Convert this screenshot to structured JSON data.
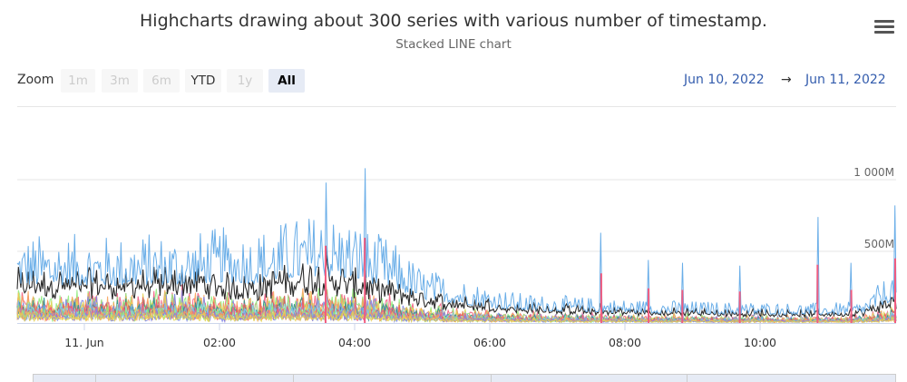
{
  "title": "Highcharts drawing about 300 series with various number of timestamp.",
  "subtitle": "Stacked LINE chart",
  "menu_icon": "hamburger-menu-icon",
  "zoom": {
    "label": "Zoom",
    "buttons": [
      {
        "label": "1m",
        "state": "disabled"
      },
      {
        "label": "3m",
        "state": "disabled"
      },
      {
        "label": "6m",
        "state": "disabled"
      },
      {
        "label": "YTD",
        "state": "enabled"
      },
      {
        "label": "1y",
        "state": "disabled"
      },
      {
        "label": "All",
        "state": "active"
      }
    ]
  },
  "range": {
    "from": "Jun 10, 2022",
    "arrow": "→",
    "to": "Jun 11, 2022"
  },
  "chart_data": {
    "type": "line",
    "stacked": true,
    "series_count_approx": 300,
    "x_ticks": [
      "11. Jun",
      "02:00",
      "04:00",
      "06:00",
      "08:00",
      "10:00"
    ],
    "y_ticks": [
      {
        "value": 500,
        "label": "500M"
      },
      {
        "value": 1000,
        "label": "1 000M"
      }
    ],
    "ylim": [
      0,
      1000
    ],
    "x_hours": [
      0,
      0.5,
      1,
      1.5,
      2,
      2.5,
      3,
      3.5,
      4,
      4.25,
      4.5,
      5,
      5.5,
      6,
      6.5,
      7,
      7.5,
      8,
      8.5,
      9,
      9.5,
      10,
      10.5,
      11,
      11.5,
      12
    ],
    "total_level": [
      480,
      470,
      490,
      480,
      520,
      500,
      560,
      600,
      560,
      500,
      460,
      300,
      250,
      200,
      160,
      150,
      140,
      130,
      125,
      120,
      115,
      115,
      110,
      110,
      115,
      300
    ],
    "dominant_series_level": [
      280,
      270,
      280,
      300,
      260,
      240,
      300,
      320,
      280,
      230,
      220,
      170,
      140,
      130,
      110,
      100,
      90,
      85,
      80,
      80,
      75,
      75,
      70,
      70,
      75,
      150
    ],
    "spikes": [
      {
        "x_hour": 3.57,
        "value": 980
      },
      {
        "x_hour": 4.15,
        "value": 1080
      },
      {
        "x_hour": 7.65,
        "value": 630
      },
      {
        "x_hour": 8.35,
        "value": 440
      },
      {
        "x_hour": 8.85,
        "value": 420
      },
      {
        "x_hour": 9.7,
        "value": 400
      },
      {
        "x_hour": 10.85,
        "value": 740
      },
      {
        "x_hour": 11.35,
        "value": 420
      },
      {
        "x_hour": 12.0,
        "value": 820
      }
    ],
    "colors": {
      "series_top": "#6aaee8",
      "series_dominant": "#2b2b2b",
      "others": [
        "#f15c80",
        "#90ed7d",
        "#f7a35c",
        "#8085e9",
        "#e4d354",
        "#2b908f",
        "#f45b5b",
        "#91e8e1",
        "#7cb5ec"
      ]
    },
    "grid": true
  }
}
